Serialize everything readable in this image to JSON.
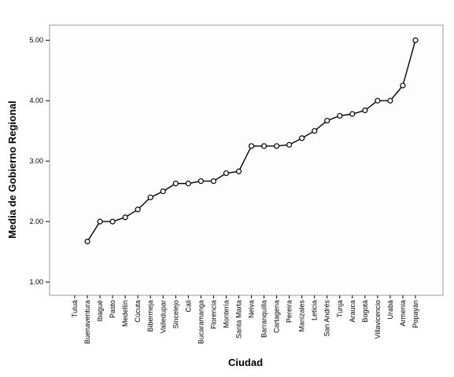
{
  "chart_data": {
    "type": "line",
    "x_label": "Ciudad",
    "y_label": "Media de Gobierno Regional",
    "categories": [
      "Tuluá",
      "Buenaventura",
      "Ibagué",
      "Pasto",
      "Medellín",
      "Cúcuta",
      "Bibermeja",
      "Valledupar",
      "Sincelejo",
      "Cali",
      "Bucaramanga",
      "Florencia",
      "Montería",
      "Santa Marta",
      "Neiva",
      "Barranquilla",
      "Cartagena",
      "Pereira",
      "Manizales",
      "Leticia",
      "San Andrés",
      "Tunja",
      "Arauca",
      "Bogotá",
      "Villavicencio",
      "Urabá",
      "Armenia",
      "Popayán"
    ],
    "values": [
      null,
      1.67,
      2.0,
      2.0,
      2.07,
      2.2,
      2.4,
      2.5,
      2.63,
      2.63,
      2.67,
      2.67,
      2.8,
      2.83,
      3.25,
      3.25,
      3.25,
      3.27,
      3.38,
      3.5,
      3.67,
      3.75,
      3.78,
      3.84,
      4.0,
      4.0,
      4.25,
      5.0
    ],
    "color": "#000000",
    "ylim": [
      0.78,
      5.25
    ],
    "yticks": [
      {
        "value": 1,
        "label": "1.00"
      },
      {
        "value": 2,
        "label": "2.00"
      },
      {
        "value": 3,
        "label": "3.00"
      },
      {
        "value": 4,
        "label": "4.00"
      },
      {
        "value": 5,
        "label": "5.00"
      }
    ],
    "grid": false
  }
}
